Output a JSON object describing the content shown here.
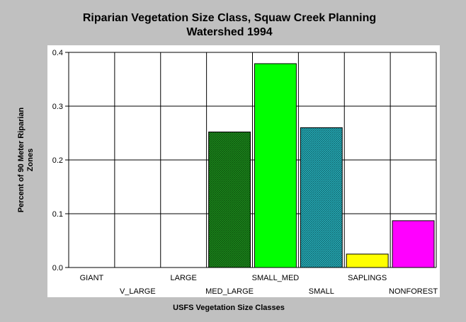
{
  "chart_data": {
    "type": "bar",
    "title_lines": [
      "Riparian Vegetation Size Class, Squaw Creek Planning",
      "Watershed 1994"
    ],
    "xlabel": "USFS Vegetation Size Classes",
    "ylabel_lines": [
      "Percent of 90 Meter Riparian",
      "Zones"
    ],
    "ylim": [
      0,
      0.4
    ],
    "yticks": [
      "0.0",
      "0.1",
      "0.2",
      "0.3",
      "0.4"
    ],
    "grid": true,
    "categories": [
      "GIANT",
      "V_LARGE",
      "LARGE",
      "MED_LARGE",
      "SMALL_MED",
      "SMALL",
      "SAPLINGS",
      "NONFOREST"
    ],
    "values": [
      0,
      0,
      0,
      0.252,
      0.379,
      0.26,
      0.025,
      0.087
    ],
    "colors": [
      "#00cc00",
      "#00cc00",
      "#00cc00",
      "#1a8c1a",
      "#00ff00",
      "#1aaab5",
      "#ffff00",
      "#ff00ff"
    ],
    "patterns": [
      "none",
      "none",
      "none",
      "hatch",
      "none",
      "hatch",
      "none",
      "none"
    ]
  }
}
